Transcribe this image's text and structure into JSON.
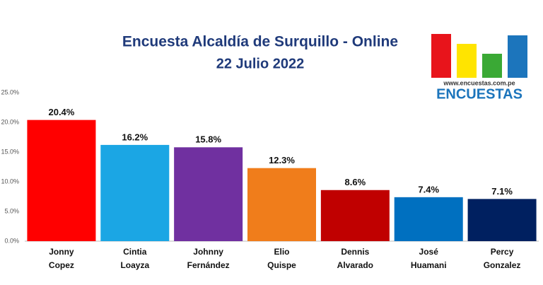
{
  "chart_data": {
    "type": "bar",
    "title": "Encuesta Alcaldía de Surquillo - Online",
    "subtitle": "22 Julio 2022",
    "logo_url": "www.encuestas.com.pe",
    "logo_name": "ENCUESTAS",
    "categories": [
      "Jonny Copez",
      "Cintia Loayza",
      "Johnny Fernández",
      "Elio Quispe",
      "Dennis Alvarado",
      "José Huamani",
      "Percy Gonzalez"
    ],
    "values": [
      20.4,
      16.2,
      15.8,
      12.3,
      8.6,
      7.4,
      7.1
    ],
    "value_labels": [
      "20.4%",
      "16.2%",
      "15.8%",
      "12.3%",
      "8.6%",
      "7.4%",
      "7.1%"
    ],
    "colors": [
      "#ff0000",
      "#1ba6e4",
      "#7030a0",
      "#f07d1b",
      "#c00000",
      "#0070c0",
      "#002060"
    ],
    "ylim": [
      0,
      25
    ],
    "yticks": [
      {
        "value": 0,
        "label": "0.0%"
      },
      {
        "value": 5,
        "label": "5.0%"
      },
      {
        "value": 10,
        "label": "10.0%"
      },
      {
        "value": 15,
        "label": "15.0%"
      },
      {
        "value": 20,
        "label": "20.0%"
      },
      {
        "value": 25,
        "label": "25.0%"
      }
    ],
    "grid": false
  }
}
